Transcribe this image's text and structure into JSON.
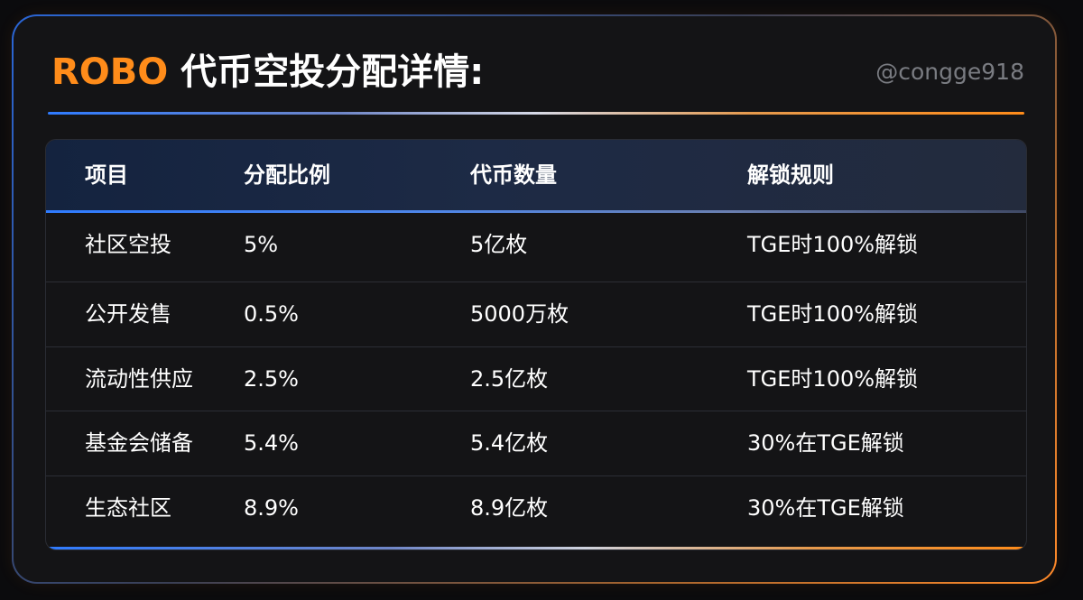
{
  "header": {
    "brand": "ROBO",
    "title": "代币空投分配详情:",
    "handle": "@congge918"
  },
  "table": {
    "columns": [
      "项目",
      "分配比例",
      "代币数量",
      "解锁规则"
    ],
    "rows": [
      [
        "社区空投",
        "5%",
        "5亿枚",
        "TGE时100%解锁"
      ],
      [
        "公开发售",
        "0.5%",
        "5000万枚",
        "TGE时100%解锁"
      ],
      [
        "流动性供应",
        "2.5%",
        "2.5亿枚",
        "TGE时100%解锁"
      ],
      [
        "基金会储备",
        "5.4%",
        "5.4亿枚",
        "30%在TGE解锁"
      ],
      [
        "生态社区",
        "8.9%",
        "8.9亿枚",
        "30%在TGE解锁"
      ]
    ]
  },
  "colors": {
    "accent_orange": "#ff8c1a",
    "accent_blue": "#2f7bff",
    "background": "#141416",
    "text": "#ffffff",
    "muted": "#7a7c82"
  }
}
